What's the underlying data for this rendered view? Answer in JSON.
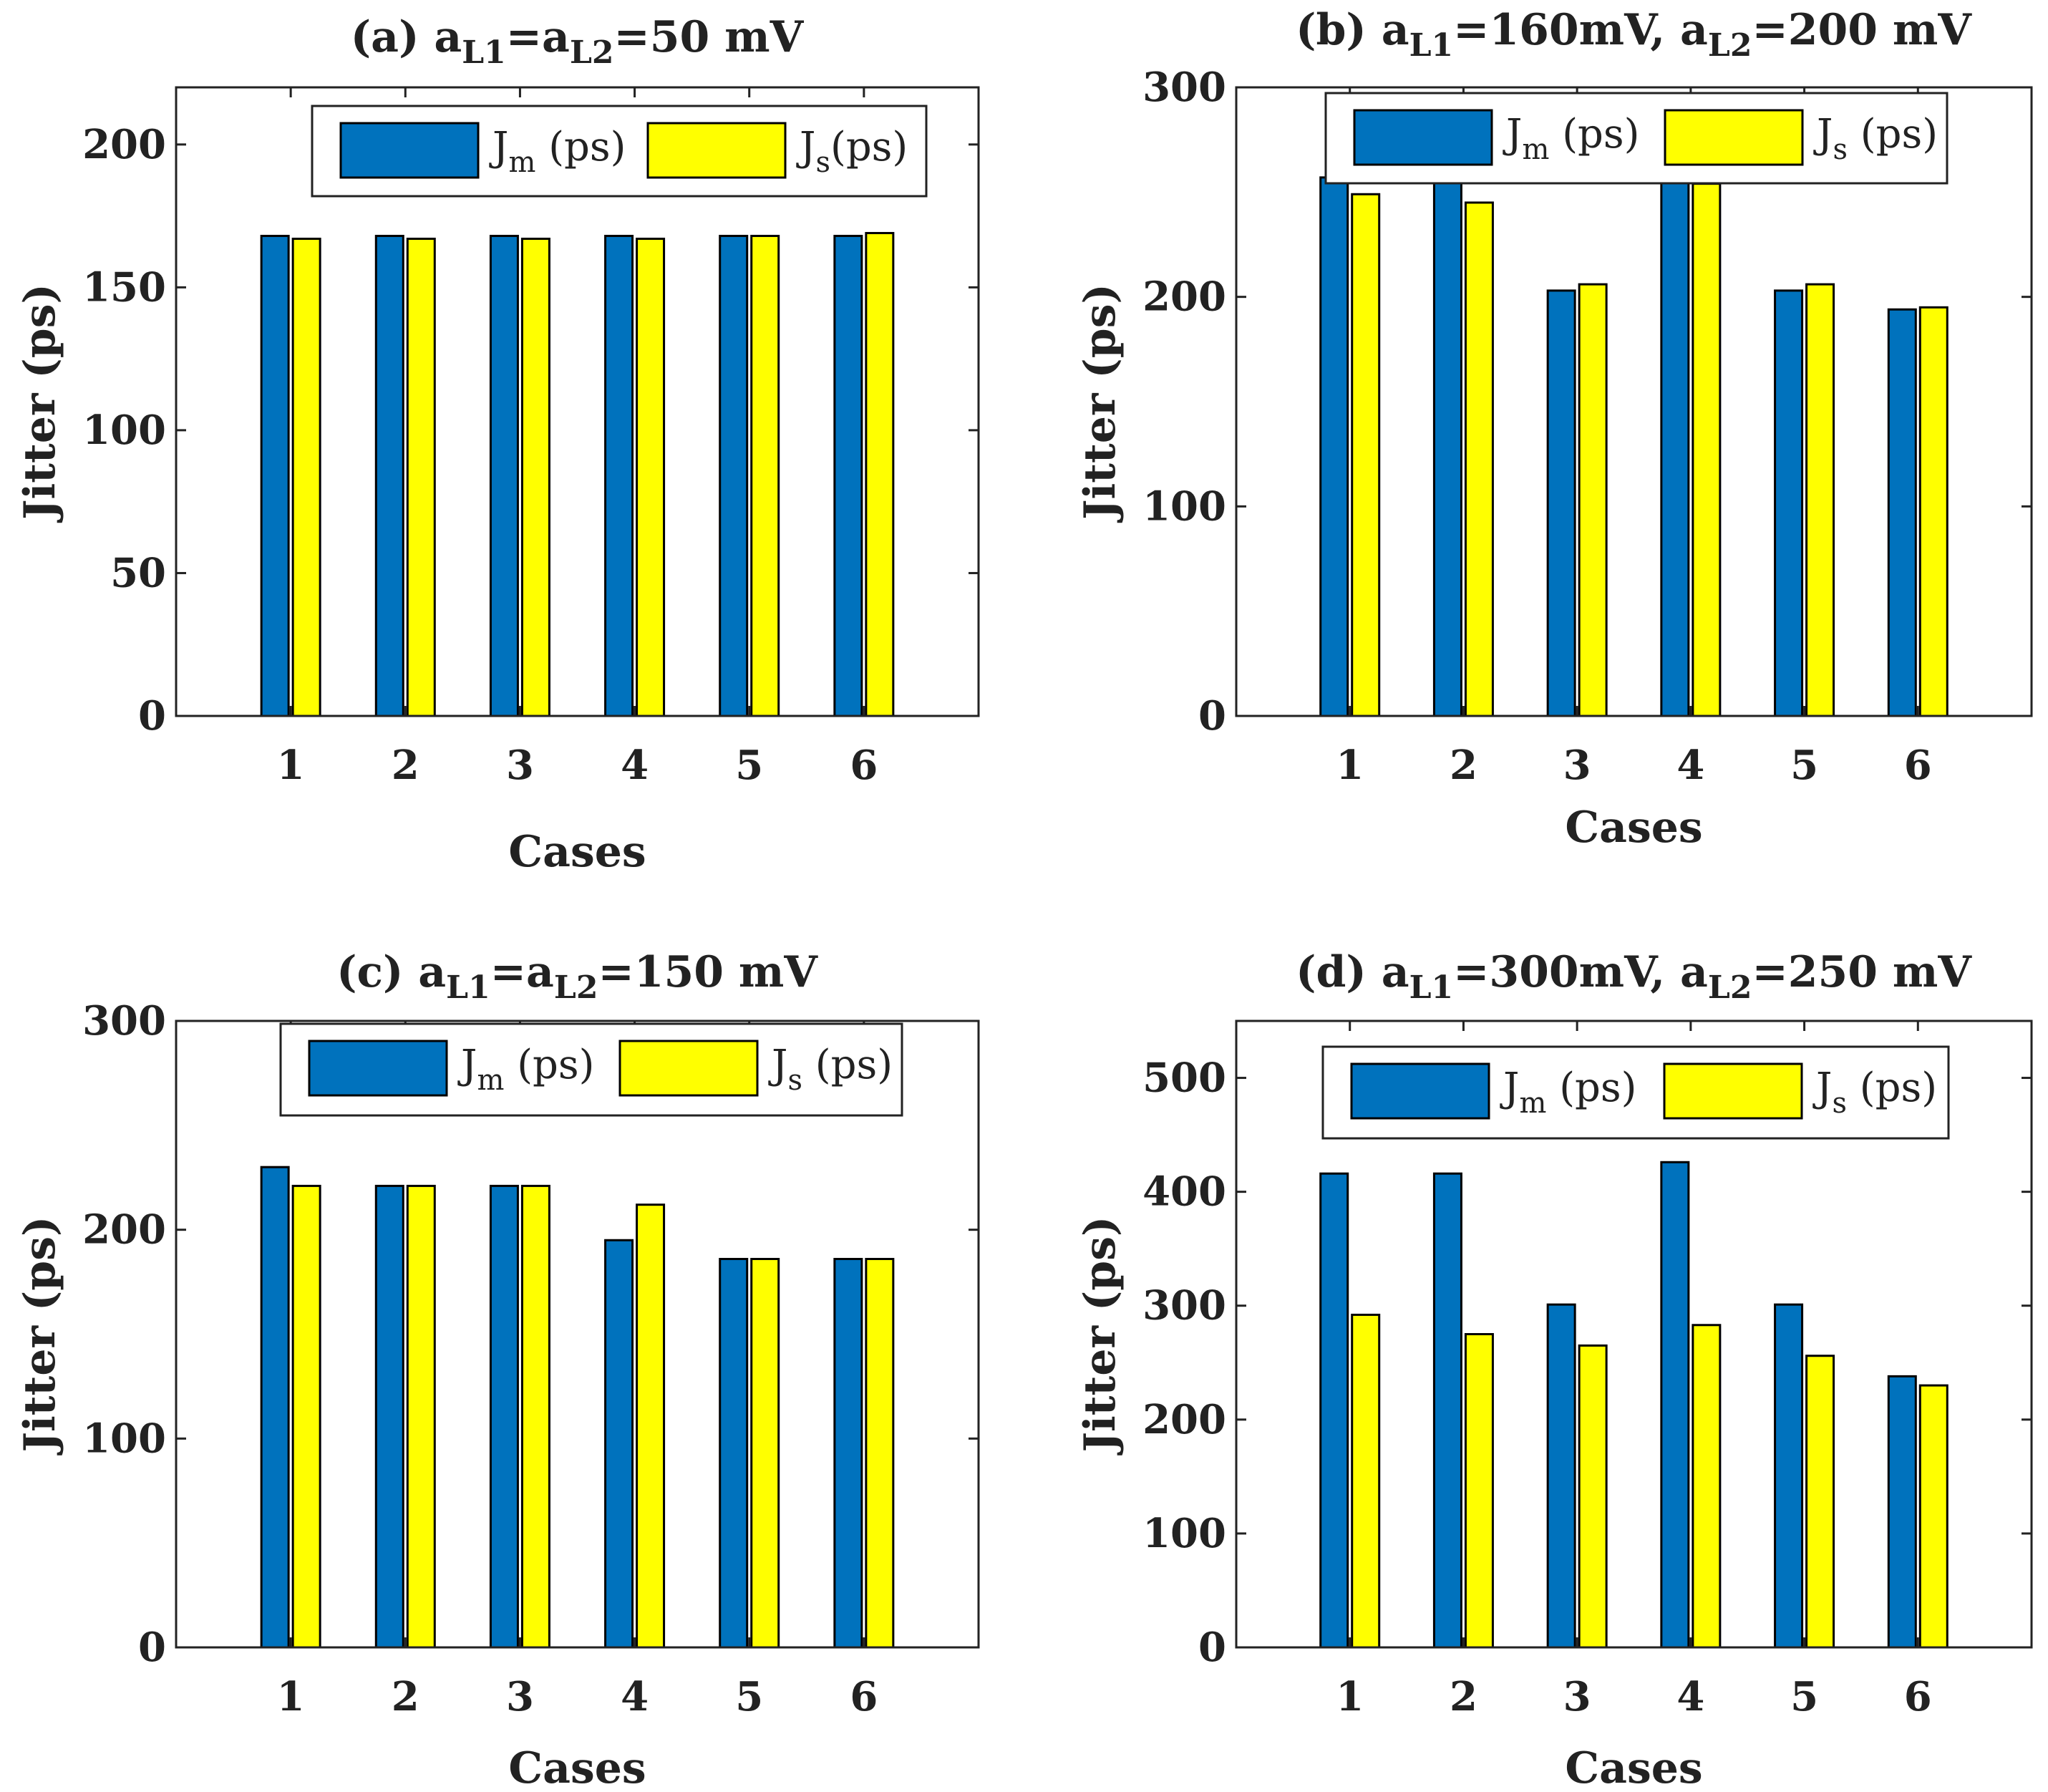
{
  "chart_data": [
    {
      "type": "bar",
      "title": "(a) a_L1=a_L2=50 mV",
      "title_parts": {
        "prefix": "(a) a",
        "sub1": "L1",
        "mid": "=a",
        "sub2": "L2",
        "suffix": "=50 mV"
      },
      "xlabel": "Cases",
      "ylabel": "Jitter (ps)",
      "categories": [
        "1",
        "2",
        "3",
        "4",
        "5",
        "6"
      ],
      "ylim": [
        0,
        220
      ],
      "yticks": [
        "0",
        "50",
        "100",
        "150",
        "200"
      ],
      "ytick_values": [
        0,
        50,
        100,
        150,
        200
      ],
      "legend_position": "top-right",
      "series": [
        {
          "name": "J_m (ps)",
          "legend_main": "J",
          "legend_sub": "m",
          "legend_rest": " (ps)",
          "color": "#0072BD",
          "values": [
            168,
            168,
            168,
            168,
            168,
            168
          ]
        },
        {
          "name": "J_s(ps)",
          "legend_main": "J",
          "legend_sub": "s",
          "legend_rest": "(ps)",
          "color": "#FFFF00",
          "values": [
            167,
            167,
            167,
            167,
            168,
            169
          ]
        }
      ]
    },
    {
      "type": "bar",
      "title": "(b) a_L1=160mV, a_L2=200 mV",
      "title_parts": {
        "prefix": "(b) a",
        "sub1": "L1",
        "mid": "=160mV, a",
        "sub2": "L2",
        "suffix": "=200 mV"
      },
      "xlabel": "Cases",
      "ylabel": "Jitter (ps)",
      "categories": [
        "1",
        "2",
        "3",
        "4",
        "5",
        "6"
      ],
      "ylim": [
        0,
        300
      ],
      "yticks": [
        "0",
        "100",
        "200",
        "300"
      ],
      "ytick_values": [
        0,
        100,
        200,
        300
      ],
      "legend_position": "top-right",
      "series": [
        {
          "name": "J_m (ps)",
          "legend_main": "J",
          "legend_sub": "m",
          "legend_rest": " (ps)",
          "color": "#0072BD",
          "values": [
            257,
            257,
            203,
            257,
            203,
            194
          ]
        },
        {
          "name": "J_s (ps)",
          "legend_main": "J",
          "legend_sub": "s",
          "legend_rest": " (ps)",
          "color": "#FFFF00",
          "values": [
            249,
            245,
            206,
            254,
            206,
            195
          ]
        }
      ]
    },
    {
      "type": "bar",
      "title": "(c) a_L1=a_L2=150 mV",
      "title_parts": {
        "prefix": "(c) a",
        "sub1": "L1",
        "mid": "=a",
        "sub2": "L2",
        "suffix": "=150 mV"
      },
      "xlabel": "Cases",
      "ylabel": "Jitter (ps)",
      "categories": [
        "1",
        "2",
        "3",
        "4",
        "5",
        "6"
      ],
      "ylim": [
        0,
        300
      ],
      "yticks": [
        "0",
        "100",
        "200",
        "300"
      ],
      "ytick_values": [
        0,
        100,
        200,
        300
      ],
      "legend_position": "top-right",
      "series": [
        {
          "name": "J_m (ps)",
          "legend_main": "J",
          "legend_sub": "m",
          "legend_rest": " (ps)",
          "color": "#0072BD",
          "values": [
            230,
            221,
            221,
            195,
            186,
            186
          ]
        },
        {
          "name": "J_s (ps)",
          "legend_main": "J",
          "legend_sub": "s",
          "legend_rest": " (ps)",
          "color": "#FFFF00",
          "values": [
            221,
            221,
            221,
            212,
            186,
            186
          ]
        }
      ]
    },
    {
      "type": "bar",
      "title": "(d) a_L1=300mV, a_L2=250 mV",
      "title_parts": {
        "prefix": "(d) a",
        "sub1": "L1",
        "mid": "=300mV, a",
        "sub2": "L2",
        "suffix": "=250 mV"
      },
      "xlabel": "Cases",
      "ylabel": "Jitter (ps)",
      "categories": [
        "1",
        "2",
        "3",
        "4",
        "5",
        "6"
      ],
      "ylim": [
        0,
        550
      ],
      "yticks": [
        "0",
        "100",
        "200",
        "300",
        "400",
        "500"
      ],
      "ytick_values": [
        0,
        100,
        200,
        300,
        400,
        500
      ],
      "legend_position": "top-right",
      "series": [
        {
          "name": "J_m (ps)",
          "legend_main": "J",
          "legend_sub": "m",
          "legend_rest": " (ps)",
          "color": "#0072BD",
          "values": [
            416,
            416,
            301,
            426,
            301,
            238
          ]
        },
        {
          "name": "J_s (ps)",
          "legend_main": "J",
          "legend_sub": "s",
          "legend_rest": " (ps)",
          "color": "#FFFF00",
          "values": [
            292,
            275,
            265,
            283,
            256,
            230
          ]
        }
      ]
    }
  ]
}
